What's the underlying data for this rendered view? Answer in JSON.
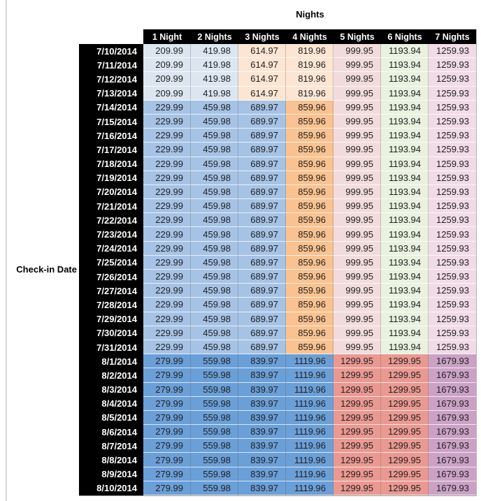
{
  "table": {
    "title": "Nights",
    "row_axis_label": "Check-in Date",
    "columns": [
      "1 Night",
      "2 Nights",
      "3 Nights",
      "4 Nights",
      "5 Nights",
      "6 Nights",
      "7 Nights"
    ],
    "palette": {
      "header_bg": "#000000",
      "header_text": "#ffffff",
      "value_text": "#1f1f1f",
      "light_blue": "#DCE6F1",
      "medium_blue": "#A6C3E6",
      "dark_blue": "#6B9FD8",
      "light_orange": "#FCE6D3",
      "medium_orange": "#F9C290",
      "light_red": "#F2DCDB",
      "dark_red": "#EA9992",
      "light_green": "#E9F1DF",
      "light_purple": "#F1DBE7",
      "dark_purple": "#CBA2C6"
    },
    "row_color_keys": {
      "A": [
        "light_blue",
        "light_blue",
        "light_orange",
        "light_orange",
        "light_red",
        "light_green",
        "light_purple"
      ],
      "B": [
        "medium_blue",
        "medium_blue",
        "medium_blue",
        "medium_orange",
        "light_red",
        "light_green",
        "light_purple"
      ],
      "C": [
        "dark_blue",
        "dark_blue",
        "dark_blue",
        "dark_blue",
        "dark_red",
        "dark_red",
        "dark_purple"
      ]
    },
    "rows": [
      {
        "date": "7/10/2014",
        "tier": "A",
        "values": [
          "209.99",
          "419.98",
          "614.97",
          "819.96",
          "999.95",
          "1193.94",
          "1259.93"
        ]
      },
      {
        "date": "7/11/2014",
        "tier": "A",
        "values": [
          "209.99",
          "419.98",
          "614.97",
          "819.96",
          "999.95",
          "1193.94",
          "1259.93"
        ]
      },
      {
        "date": "7/12/2014",
        "tier": "A",
        "values": [
          "209.99",
          "419.98",
          "614.97",
          "819.96",
          "999.95",
          "1193.94",
          "1259.93"
        ]
      },
      {
        "date": "7/13/2014",
        "tier": "A",
        "values": [
          "209.99",
          "419.98",
          "614.97",
          "819.96",
          "999.95",
          "1193.94",
          "1259.93"
        ]
      },
      {
        "date": "7/14/2014",
        "tier": "B",
        "values": [
          "229.99",
          "459.98",
          "689.97",
          "859.96",
          "999.95",
          "1193.94",
          "1259.93"
        ]
      },
      {
        "date": "7/15/2014",
        "tier": "B",
        "values": [
          "229.99",
          "459.98",
          "689.97",
          "859.96",
          "999.95",
          "1193.94",
          "1259.93"
        ]
      },
      {
        "date": "7/16/2014",
        "tier": "B",
        "values": [
          "229.99",
          "459.98",
          "689.97",
          "859.96",
          "999.95",
          "1193.94",
          "1259.93"
        ]
      },
      {
        "date": "7/17/2014",
        "tier": "B",
        "values": [
          "229.99",
          "459.98",
          "689.97",
          "859.96",
          "999.95",
          "1193.94",
          "1259.93"
        ]
      },
      {
        "date": "7/18/2014",
        "tier": "B",
        "values": [
          "229.99",
          "459.98",
          "689.97",
          "859.96",
          "999.95",
          "1193.94",
          "1259.93"
        ]
      },
      {
        "date": "7/19/2014",
        "tier": "B",
        "values": [
          "229.99",
          "459.98",
          "689.97",
          "859.96",
          "999.95",
          "1193.94",
          "1259.93"
        ]
      },
      {
        "date": "7/20/2014",
        "tier": "B",
        "values": [
          "229.99",
          "459.98",
          "689.97",
          "859.96",
          "999.95",
          "1193.94",
          "1259.93"
        ]
      },
      {
        "date": "7/21/2014",
        "tier": "B",
        "values": [
          "229.99",
          "459.98",
          "689.97",
          "859.96",
          "999.95",
          "1193.94",
          "1259.93"
        ]
      },
      {
        "date": "7/22/2014",
        "tier": "B",
        "values": [
          "229.99",
          "459.98",
          "689.97",
          "859.96",
          "999.95",
          "1193.94",
          "1259.93"
        ]
      },
      {
        "date": "7/23/2014",
        "tier": "B",
        "values": [
          "229.99",
          "459.98",
          "689.97",
          "859.96",
          "999.95",
          "1193.94",
          "1259.93"
        ]
      },
      {
        "date": "7/24/2014",
        "tier": "B",
        "values": [
          "229.99",
          "459.98",
          "689.97",
          "859.96",
          "999.95",
          "1193.94",
          "1259.93"
        ]
      },
      {
        "date": "7/25/2014",
        "tier": "B",
        "values": [
          "229.99",
          "459.98",
          "689.97",
          "859.96",
          "999.95",
          "1193.94",
          "1259.93"
        ]
      },
      {
        "date": "7/26/2014",
        "tier": "B",
        "values": [
          "229.99",
          "459.98",
          "689.97",
          "859.96",
          "999.95",
          "1193.94",
          "1259.93"
        ]
      },
      {
        "date": "7/27/2014",
        "tier": "B",
        "values": [
          "229.99",
          "459.98",
          "689.97",
          "859.96",
          "999.95",
          "1193.94",
          "1259.93"
        ]
      },
      {
        "date": "7/28/2014",
        "tier": "B",
        "values": [
          "229.99",
          "459.98",
          "689.97",
          "859.96",
          "999.95",
          "1193.94",
          "1259.93"
        ]
      },
      {
        "date": "7/29/2014",
        "tier": "B",
        "values": [
          "229.99",
          "459.98",
          "689.97",
          "859.96",
          "999.95",
          "1193.94",
          "1259.93"
        ]
      },
      {
        "date": "7/30/2014",
        "tier": "B",
        "values": [
          "229.99",
          "459.98",
          "689.97",
          "859.96",
          "999.95",
          "1193.94",
          "1259.93"
        ]
      },
      {
        "date": "7/31/2014",
        "tier": "B",
        "values": [
          "229.99",
          "459.98",
          "689.97",
          "859.96",
          "999.95",
          "1193.94",
          "1259.93"
        ]
      },
      {
        "date": "8/1/2014",
        "tier": "C",
        "values": [
          "279.99",
          "559.98",
          "839.97",
          "1119.96",
          "1299.95",
          "1299.95",
          "1679.93"
        ]
      },
      {
        "date": "8/2/2014",
        "tier": "C",
        "values": [
          "279.99",
          "559.98",
          "839.97",
          "1119.96",
          "1299.95",
          "1299.95",
          "1679.93"
        ]
      },
      {
        "date": "8/3/2014",
        "tier": "C",
        "values": [
          "279.99",
          "559.98",
          "839.97",
          "1119.96",
          "1299.95",
          "1299.95",
          "1679.93"
        ]
      },
      {
        "date": "8/4/2014",
        "tier": "C",
        "values": [
          "279.99",
          "559.98",
          "839.97",
          "1119.96",
          "1299.95",
          "1299.95",
          "1679.93"
        ]
      },
      {
        "date": "8/5/2014",
        "tier": "C",
        "values": [
          "279.99",
          "559.98",
          "839.97",
          "1119.96",
          "1299.95",
          "1299.95",
          "1679.93"
        ]
      },
      {
        "date": "8/6/2014",
        "tier": "C",
        "values": [
          "279.99",
          "559.98",
          "839.97",
          "1119.96",
          "1299.95",
          "1299.95",
          "1679.93"
        ]
      },
      {
        "date": "8/7/2014",
        "tier": "C",
        "values": [
          "279.99",
          "559.98",
          "839.97",
          "1119.96",
          "1299.95",
          "1299.95",
          "1679.93"
        ]
      },
      {
        "date": "8/8/2014",
        "tier": "C",
        "values": [
          "279.99",
          "559.98",
          "839.97",
          "1119.96",
          "1299.95",
          "1299.95",
          "1679.93"
        ]
      },
      {
        "date": "8/9/2014",
        "tier": "C",
        "values": [
          "279.99",
          "559.98",
          "839.97",
          "1119.96",
          "1299.95",
          "1299.95",
          "1679.93"
        ]
      },
      {
        "date": "8/10/2014",
        "tier": "C",
        "values": [
          "279.99",
          "559.98",
          "839.97",
          "1119.96",
          "1299.95",
          "1299.95",
          "1679.93"
        ]
      }
    ]
  }
}
